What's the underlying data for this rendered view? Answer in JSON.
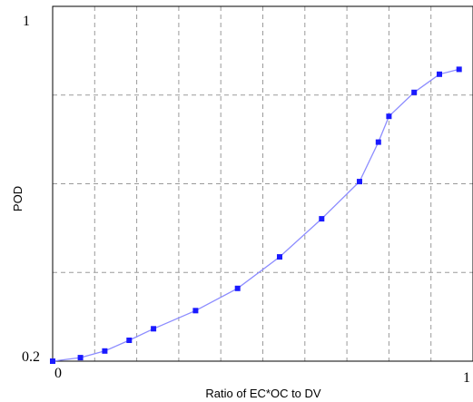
{
  "chart_data": {
    "type": "line",
    "title": "",
    "xlabel": "Ratio of EC*OC to DV",
    "ylabel": "POD",
    "xlim": [
      0,
      1
    ],
    "ylim": [
      0.2,
      1
    ],
    "x_tick_labels": [
      "0",
      "1"
    ],
    "y_tick_labels": [
      "0.2",
      "1"
    ],
    "grid": true,
    "series": [
      {
        "x": [
          0,
          0.066,
          0.124,
          0.182,
          0.24,
          0.34,
          0.44,
          0.54,
          0.64,
          0.73,
          0.775,
          0.8,
          0.86,
          0.92,
          0.967
        ],
        "y": [
          0.2,
          0.208,
          0.223,
          0.247,
          0.273,
          0.314,
          0.364,
          0.435,
          0.521,
          0.605,
          0.694,
          0.752,
          0.806,
          0.847,
          0.858
        ]
      }
    ],
    "colors": {
      "series": "#1a1aff",
      "line": "#8c8cff",
      "grid": "#9a9a9a",
      "frame": "#000000"
    }
  }
}
